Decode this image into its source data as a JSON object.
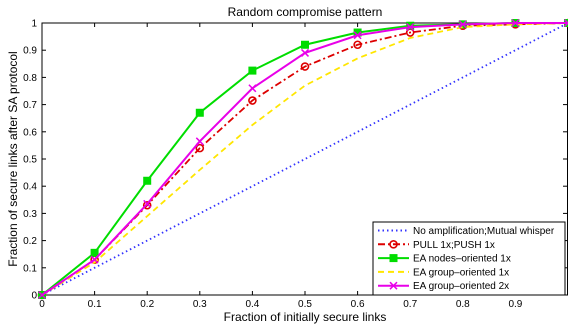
{
  "chart_data": {
    "type": "line",
    "title": "Random compromise pattern",
    "xlabel": "Fraction of initially secure links",
    "ylabel": "Fraction of secure links after SA protocol",
    "xlim": [
      0,
      1
    ],
    "ylim": [
      0,
      1
    ],
    "x_ticks": [
      "0",
      "0.1",
      "0.2",
      "0.3",
      "0.4",
      "0.5",
      "0.6",
      "0.7",
      "0.8",
      "0.9"
    ],
    "y_ticks": [
      "0",
      "0.1",
      "0.2",
      "0.3",
      "0.4",
      "0.5",
      "0.6",
      "0.7",
      "0.8",
      "0.9",
      "1"
    ],
    "grid": false,
    "legend_position": "bottom-right",
    "series": [
      {
        "name": "No amplification;Mutual whisper",
        "color": "#3333ff",
        "dash": "dotted",
        "marker": "none",
        "x": [
          0,
          0.1,
          0.2,
          0.3,
          0.4,
          0.5,
          0.6,
          0.7,
          0.8,
          0.9,
          1
        ],
        "y": [
          0,
          0.1,
          0.2,
          0.3,
          0.4,
          0.5,
          0.6,
          0.7,
          0.8,
          0.9,
          1
        ]
      },
      {
        "name": "PULL 1x;PUSH 1x",
        "color": "#dd0000",
        "dash": "dashdot",
        "marker": "circle",
        "x": [
          0,
          0.1,
          0.2,
          0.3,
          0.4,
          0.5,
          0.6,
          0.7,
          0.8,
          0.9,
          1
        ],
        "y": [
          0,
          0.13,
          0.33,
          0.54,
          0.715,
          0.84,
          0.92,
          0.965,
          0.99,
          0.995,
          1
        ]
      },
      {
        "name": "EA nodes–oriented 1x",
        "color": "#00dd00",
        "dash": "solid",
        "marker": "square",
        "x": [
          0,
          0.1,
          0.2,
          0.3,
          0.4,
          0.5,
          0.6,
          0.7,
          0.8,
          0.9,
          1
        ],
        "y": [
          0,
          0.155,
          0.42,
          0.67,
          0.825,
          0.92,
          0.965,
          0.99,
          0.995,
          1,
          1
        ]
      },
      {
        "name": "EA group–oriented 1x",
        "color": "#ffe600",
        "dash": "dashed",
        "marker": "none",
        "x": [
          0,
          0.1,
          0.2,
          0.3,
          0.4,
          0.5,
          0.6,
          0.7,
          0.8,
          0.9,
          1
        ],
        "y": [
          0,
          0.12,
          0.29,
          0.46,
          0.625,
          0.77,
          0.87,
          0.945,
          0.985,
          0.995,
          1
        ]
      },
      {
        "name": "EA group–oriented 2x",
        "color": "#e800e8",
        "dash": "solid",
        "marker": "x",
        "x": [
          0,
          0.1,
          0.2,
          0.3,
          0.4,
          0.5,
          0.6,
          0.7,
          0.8,
          0.9,
          1
        ],
        "y": [
          0,
          0.13,
          0.335,
          0.565,
          0.76,
          0.89,
          0.955,
          0.985,
          0.995,
          1,
          1
        ]
      }
    ]
  }
}
